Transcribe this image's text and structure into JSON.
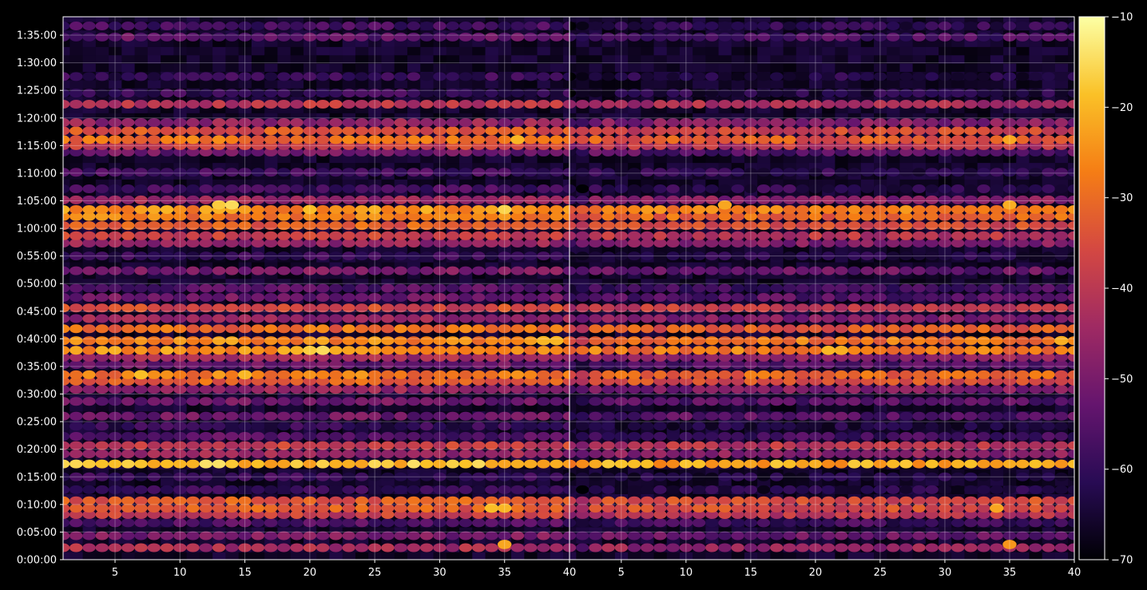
{
  "chart_data": {
    "type": "heatmap",
    "panels": [
      {
        "name": "left",
        "x_range": [
          1,
          40
        ],
        "x_ticks": [
          5,
          10,
          15,
          20,
          25,
          30,
          35,
          40
        ],
        "left_edge_trimmed": false,
        "strong_rows_boost": [],
        "band_strength": [],
        "hot_spots": [
          {
            "x": 21,
            "t": 2275,
            "v": -15
          },
          {
            "x": 20,
            "t": 2275,
            "v": -17
          },
          {
            "x": 13,
            "t": 3855,
            "v": -17
          },
          {
            "x": 14,
            "t": 3855,
            "v": -15
          },
          {
            "x": 7,
            "t": 2010,
            "v": -19
          },
          {
            "x": 15,
            "t": 2010,
            "v": -20
          },
          {
            "x": 35,
            "t": 3805,
            "v": -16
          },
          {
            "x": 20,
            "t": 3805,
            "v": -19
          },
          {
            "x": 34,
            "t": 560,
            "v": -19
          },
          {
            "x": 35,
            "t": 560,
            "v": -20
          },
          {
            "x": 36,
            "t": 4565,
            "v": -20
          },
          {
            "x": 38,
            "t": 2380,
            "v": -20
          },
          {
            "x": 39,
            "t": 2380,
            "v": -20
          },
          {
            "x": 35,
            "t": 165,
            "v": -22
          }
        ]
      },
      {
        "name": "right",
        "x_range": [
          1,
          40
        ],
        "x_ticks": [
          5,
          10,
          15,
          20,
          25,
          30,
          35,
          40
        ],
        "left_edge_trimmed": true,
        "strong_rows_boost": [],
        "band_strength": [],
        "hot_spots": [
          {
            "x": 21,
            "t": 2275,
            "v": -20
          },
          {
            "x": 22,
            "t": 2275,
            "v": -21
          },
          {
            "x": 13,
            "t": 3855,
            "v": -22
          },
          {
            "x": 35,
            "t": 3855,
            "v": -21
          },
          {
            "x": 34,
            "t": 560,
            "v": -22
          },
          {
            "x": 39,
            "t": 2380,
            "v": -21
          },
          {
            "x": 35,
            "t": 4565,
            "v": -22
          },
          {
            "x": 35,
            "t": 165,
            "v": -24
          }
        ]
      }
    ],
    "ylabel_ticks": [
      "0:00:00",
      "0:05:00",
      "0:10:00",
      "0:15:00",
      "0:20:00",
      "0:25:00",
      "0:30:00",
      "0:35:00",
      "0:40:00",
      "0:45:00",
      "0:50:00",
      "0:55:00",
      "1:00:00",
      "1:05:00",
      "1:10:00",
      "1:15:00",
      "1:20:00",
      "1:25:00",
      "1:30:00",
      "1:35:00"
    ],
    "y_range_seconds": [
      0,
      5900
    ],
    "y_ticks_seconds": [
      0,
      300,
      600,
      900,
      1200,
      1500,
      1800,
      2100,
      2400,
      2700,
      3000,
      3300,
      3600,
      3900,
      4200,
      4500,
      4800,
      5100,
      5400,
      5700
    ],
    "rows": [
      {
        "t": 130,
        "v": -43
      },
      {
        "t": 260,
        "v": -50
      },
      {
        "t": 400,
        "v": -56
      },
      {
        "t": 490,
        "v": -38
      },
      {
        "t": 560,
        "v": -33
      },
      {
        "t": 640,
        "v": -33
      },
      {
        "t": 760,
        "v": -60
      },
      {
        "t": 900,
        "v": -60
      },
      {
        "t": 1040,
        "v": -19
      },
      {
        "t": 1150,
        "v": -45
      },
      {
        "t": 1240,
        "v": -38
      },
      {
        "t": 1340,
        "v": -55
      },
      {
        "t": 1450,
        "v": -60
      },
      {
        "t": 1560,
        "v": -52
      },
      {
        "t": 1720,
        "v": -52
      },
      {
        "t": 1850,
        "v": -46
      },
      {
        "t": 1940,
        "v": -32
      },
      {
        "t": 2010,
        "v": -28
      },
      {
        "t": 2120,
        "v": -52
      },
      {
        "t": 2200,
        "v": -44
      },
      {
        "t": 2275,
        "v": -25
      },
      {
        "t": 2380,
        "v": -26
      },
      {
        "t": 2510,
        "v": -30
      },
      {
        "t": 2620,
        "v": -46
      },
      {
        "t": 2735,
        "v": -36
      },
      {
        "t": 2850,
        "v": -52
      },
      {
        "t": 2950,
        "v": -55
      },
      {
        "t": 3140,
        "v": -50
      },
      {
        "t": 3300,
        "v": -60
      },
      {
        "t": 3440,
        "v": -46
      },
      {
        "t": 3520,
        "v": -38
      },
      {
        "t": 3630,
        "v": -32
      },
      {
        "t": 3730,
        "v": -28
      },
      {
        "t": 3805,
        "v": -25
      },
      {
        "t": 3910,
        "v": -45
      },
      {
        "t": 4030,
        "v": -58
      },
      {
        "t": 4210,
        "v": -58
      },
      {
        "t": 4430,
        "v": -52
      },
      {
        "t": 4500,
        "v": -38
      },
      {
        "t": 4565,
        "v": -30
      },
      {
        "t": 4660,
        "v": -34
      },
      {
        "t": 4750,
        "v": -46
      },
      {
        "t": 4950,
        "v": -40
      },
      {
        "t": 5070,
        "v": -60
      },
      {
        "t": 5250,
        "v": -60
      },
      {
        "t": 5680,
        "v": -54
      },
      {
        "t": 5800,
        "v": -58
      }
    ],
    "colorbar": {
      "colormap": "inferno",
      "range": [
        -70,
        -10
      ],
      "ticks": [
        -10,
        -20,
        -30,
        -40,
        -50,
        -60,
        -70
      ],
      "tick_labels": [
        "−10",
        "−20",
        "−30",
        "−40",
        "−50",
        "−60",
        "−70"
      ]
    },
    "grid": true
  }
}
